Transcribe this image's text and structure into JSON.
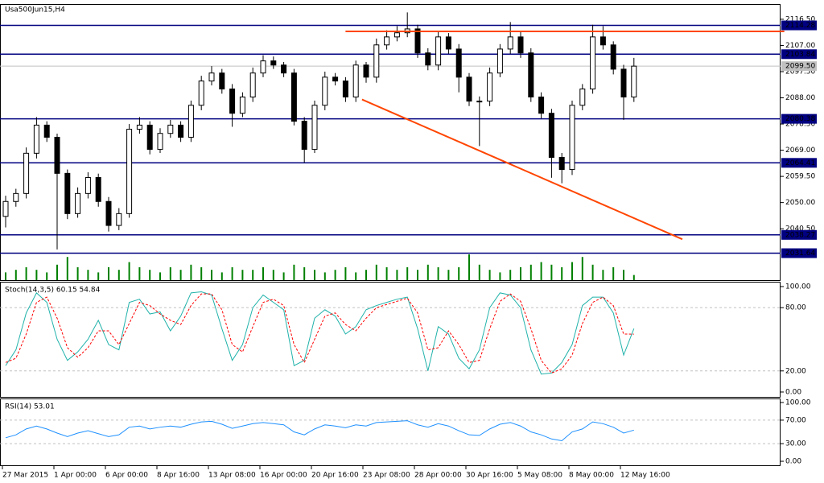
{
  "chart_data": [
    {
      "type": "candlestick",
      "title": "Usa500Jun15,H4",
      "categories": [
        "27 Mar 2015",
        null,
        null,
        null,
        null,
        "1 Apr 00:00",
        null,
        null,
        null,
        null,
        "6 Apr 00:00",
        null,
        null,
        null,
        null,
        "8 Apr 16:00",
        null,
        null,
        null,
        null,
        "13 Apr 08:00",
        null,
        null,
        null,
        null,
        "16 Apr 00:00",
        null,
        null,
        null,
        null,
        "20 Apr 16:00",
        null,
        null,
        null,
        null,
        "23 Apr 08:00",
        null,
        null,
        null,
        null,
        "28 Apr 00:00",
        null,
        null,
        null,
        null,
        "30 Apr 16:00",
        null,
        null,
        null,
        null,
        "5 May 08:00",
        null,
        null,
        null,
        null,
        "8 May 00:00",
        null,
        null,
        null,
        null,
        "12 May 16:00",
        null
      ],
      "open": [
        2045.0,
        2050.4,
        2053.3,
        2067.9,
        2078.1,
        2073.7,
        2060.6,
        2046.0,
        2053.3,
        2059.1,
        2050.4,
        2041.7,
        2046.0,
        2076.6,
        2078.1,
        2069.3,
        2075.1,
        2078.1,
        2073.7,
        2085.3,
        2094.1,
        2097.0,
        2091.2,
        2082.4,
        2088.3,
        2097.0,
        2101.4,
        2099.9,
        2097.0,
        2079.5,
        2069.3,
        2085.3,
        2095.5,
        2094.1,
        2088.3,
        2099.9,
        2095.5,
        2107.2,
        2110.1,
        2111.6,
        2113.0,
        2104.3,
        2099.9,
        2110.1,
        2105.7,
        2095.5,
        2086.8,
        2086.8,
        2097.0,
        2105.7,
        2110.1,
        2104.3,
        2088.3,
        2082.4,
        2066.4,
        2062.0,
        2085.3,
        2091.2,
        2110.1,
        2107.2,
        2098.4,
        2088.3
      ],
      "high": [
        2052.5,
        2055.0,
        2070.0,
        2081.0,
        2079.5,
        2075.0,
        2062.0,
        2055.5,
        2061.0,
        2060.5,
        2052.0,
        2048.0,
        2078.5,
        2081.0,
        2079.5,
        2077.0,
        2080.0,
        2079.5,
        2087.0,
        2096.0,
        2099.5,
        2098.5,
        2093.0,
        2090.0,
        2099.0,
        2103.5,
        2103.0,
        2101.0,
        2098.5,
        2081.0,
        2087.0,
        2097.5,
        2097.0,
        2095.5,
        2101.5,
        2101.0,
        2109.5,
        2112.5,
        2114.0,
        2119.0,
        2114.5,
        2106.0,
        2112.0,
        2111.5,
        2107.5,
        2097.0,
        2088.5,
        2099.0,
        2107.5,
        2115.5,
        2112.0,
        2106.0,
        2090.0,
        2084.0,
        2068.0,
        2087.0,
        2093.0,
        2114.5,
        2114.0,
        2108.5,
        2100.0,
        2102.5
      ],
      "low": [
        2041.0,
        2048.5,
        2051.5,
        2066.0,
        2072.0,
        2033.0,
        2044.0,
        2044.5,
        2051.5,
        2048.5,
        2039.5,
        2040.0,
        2044.5,
        2075.0,
        2067.5,
        2068.0,
        2073.5,
        2072.0,
        2072.0,
        2083.5,
        2092.5,
        2089.5,
        2077.5,
        2081.0,
        2086.5,
        2095.5,
        2098.5,
        2095.5,
        2078.0,
        2064.5,
        2068.0,
        2083.5,
        2092.5,
        2086.5,
        2086.5,
        2093.5,
        2093.5,
        2105.5,
        2108.5,
        2110.0,
        2102.5,
        2098.0,
        2098.0,
        2104.0,
        2090.0,
        2085.0,
        2070.5,
        2085.0,
        2095.5,
        2104.0,
        2102.5,
        2086.5,
        2080.5,
        2059.0,
        2057.0,
        2060.0,
        2083.5,
        2089.5,
        2105.5,
        2096.5,
        2080.0,
        2086.5
      ],
      "close": [
        2050.4,
        2053.3,
        2067.9,
        2078.1,
        2073.7,
        2060.6,
        2046.0,
        2053.3,
        2059.1,
        2050.4,
        2041.7,
        2046.0,
        2076.6,
        2078.1,
        2069.3,
        2075.1,
        2078.1,
        2073.7,
        2085.3,
        2094.1,
        2097.0,
        2091.2,
        2082.4,
        2088.3,
        2097.0,
        2101.4,
        2099.9,
        2097.0,
        2079.5,
        2069.3,
        2085.3,
        2095.5,
        2094.1,
        2088.3,
        2099.9,
        2095.5,
        2107.2,
        2110.1,
        2111.6,
        2113.0,
        2104.3,
        2099.9,
        2110.1,
        2105.7,
        2095.5,
        2086.8,
        2086.8,
        2097.0,
        2105.7,
        2110.1,
        2104.3,
        2088.3,
        2082.4,
        2066.4,
        2062.0,
        2085.3,
        2091.2,
        2110.1,
        2107.2,
        2098.4,
        2088.3,
        2099.5
      ],
      "volume": [
        3,
        4,
        5,
        4,
        3,
        6,
        9,
        5,
        4,
        3,
        5,
        4,
        7,
        5,
        4,
        3,
        5,
        4,
        6,
        5,
        4,
        3,
        5,
        4,
        4,
        5,
        4,
        3,
        6,
        5,
        4,
        3,
        4,
        5,
        3,
        4,
        6,
        5,
        4,
        5,
        4,
        6,
        5,
        4,
        5,
        10,
        6,
        4,
        3,
        4,
        5,
        6,
        7,
        6,
        5,
        7,
        9,
        6,
        4,
        5,
        4,
        2
      ],
      "volume_color": "#008000",
      "up_color": "#ffffff",
      "down_color": "#000000",
      "ylim": [
        2021.86,
        2121.74
      ],
      "yticks": [
        {
          "value": 2116.5,
          "label": "2116.50"
        },
        {
          "value": 2107,
          "label": "2107.00"
        },
        {
          "value": 2097.5,
          "label": "2097.50"
        },
        {
          "value": 2088,
          "label": "2088.00"
        },
        {
          "value": 2078.5,
          "label": "2078.50"
        },
        {
          "value": 2069,
          "label": "2069.00"
        },
        {
          "value": 2059.5,
          "label": "2059.50"
        },
        {
          "value": 2050,
          "label": "2050.00"
        },
        {
          "value": 2040.5,
          "label": "2040.50"
        }
      ],
      "levels": [
        2114.28,
        2103.84,
        2080.38,
        2064.41,
        2038.27,
        2031.64
      ],
      "level_color": "#000080",
      "last_price": {
        "value": 2099.5,
        "label": "2099.50"
      },
      "trendlines": [
        {
          "color": "#ff4500",
          "from": [
            33.0,
            2112.1
          ],
          "to": [
            75.6,
            2112.1
          ]
        },
        {
          "color": "#ff4500",
          "from": [
            34.6,
            2087.4
          ],
          "to": [
            65.7,
            2036.7
          ]
        }
      ]
    },
    {
      "type": "line",
      "title": "Stoch(14,3,5) 60.15 54.84",
      "series": [
        {
          "color": "#20b2aa",
          "dash": false,
          "values": [
            25,
            40,
            75,
            94,
            85,
            50,
            30,
            38,
            50,
            68,
            45,
            40,
            85,
            88,
            74,
            76,
            58,
            72,
            94,
            95,
            92,
            60,
            30,
            45,
            80,
            92,
            85,
            78,
            25,
            30,
            70,
            78,
            72,
            55,
            62,
            78,
            82,
            85,
            88,
            90,
            60,
            20,
            62,
            55,
            32,
            22,
            40,
            80,
            94,
            92,
            80,
            40,
            17,
            18,
            28,
            45,
            82,
            90,
            90,
            75,
            35,
            60.15
          ]
        },
        {
          "color": "#ff0000",
          "dash": true,
          "values": [
            28,
            32,
            55,
            85,
            90,
            70,
            42,
            33,
            42,
            58,
            58,
            45,
            65,
            85,
            82,
            74,
            68,
            64,
            82,
            93,
            93,
            78,
            45,
            38,
            62,
            85,
            88,
            82,
            45,
            28,
            50,
            72,
            75,
            64,
            58,
            70,
            80,
            83,
            86,
            89,
            75,
            40,
            42,
            58,
            45,
            28,
            30,
            60,
            86,
            93,
            86,
            60,
            30,
            18,
            22,
            35,
            65,
            85,
            90,
            82,
            55,
            54.84
          ]
        }
      ],
      "ylim": [
        -4.6,
        103.8
      ],
      "yticks": [
        {
          "value": 100,
          "label": "100.00"
        },
        {
          "value": 80,
          "label": "80.00"
        },
        {
          "value": 20,
          "label": "20.00"
        },
        {
          "value": 0,
          "label": "0.00"
        }
      ],
      "levels": [
        80,
        20
      ]
    },
    {
      "type": "line",
      "title": "RSI(14) 53.01",
      "series": [
        {
          "color": "#1e90ff",
          "dash": false,
          "values": [
            40,
            45,
            55,
            60,
            55,
            48,
            42,
            48,
            52,
            47,
            42,
            45,
            58,
            60,
            55,
            58,
            60,
            58,
            63,
            67,
            68,
            63,
            56,
            60,
            64,
            66,
            64,
            62,
            50,
            45,
            55,
            62,
            60,
            57,
            62,
            60,
            66,
            67,
            68,
            69,
            62,
            58,
            64,
            60,
            52,
            45,
            44,
            55,
            63,
            66,
            60,
            50,
            45,
            38,
            35,
            50,
            55,
            67,
            64,
            58,
            48,
            53.01
          ]
        }
      ],
      "ylim": [
        -6.8,
        105.5
      ],
      "yticks": [
        {
          "value": 100,
          "label": "100.00"
        },
        {
          "value": 70,
          "label": "70.00"
        },
        {
          "value": 30,
          "label": "30.00"
        },
        {
          "value": 0,
          "label": "0.00"
        }
      ],
      "levels": [
        70,
        30
      ]
    }
  ]
}
